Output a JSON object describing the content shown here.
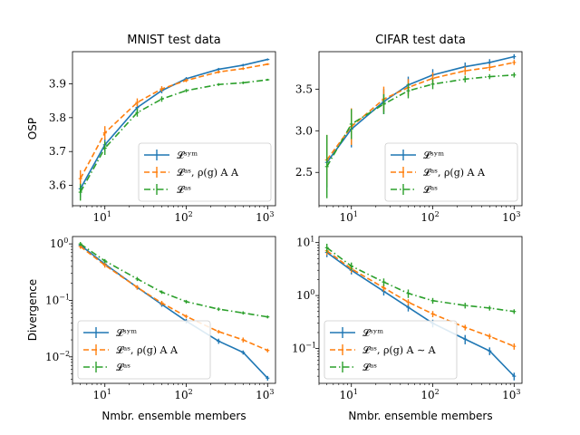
{
  "figure": {
    "colors": {
      "sym": "#1f77b4",
      "as_rho": "#ff7f0e",
      "as": "#2ca02c"
    },
    "legend_entries": {
      "sym": "𝓛ˢʸᵐ",
      "as_rho": "𝓛ᵃˢ, ρ(g) A  A",
      "as_rho_tilde": "𝓛ᵃˢ, ρ(g) A ∼ A",
      "as": "𝓛ᵃˢ"
    }
  },
  "chart_data": [
    {
      "id": "mnist-osp",
      "type": "line",
      "title": "MNIST test data",
      "xlabel": "",
      "ylabel": "OSP",
      "xscale": "log",
      "yscale": "linear",
      "xlim": [
        4,
        1250
      ],
      "ylim": [
        3.54,
        3.995
      ],
      "xticks": [
        10,
        100,
        1000
      ],
      "xtick_labels": [
        "10",
        "10",
        "10"
      ],
      "xtick_exps": [
        "1",
        "2",
        "3"
      ],
      "yticks": [
        3.6,
        3.7,
        3.8,
        3.9
      ],
      "ytick_labels": [
        "3.6",
        "3.7",
        "3.8",
        "3.9"
      ],
      "legend_position": "lower-right",
      "x": [
        5,
        10,
        25,
        50,
        100,
        250,
        500,
        1000
      ],
      "series": [
        {
          "key": "sym",
          "name": "𝓛ˢʸᵐ",
          "dash": "solid",
          "values": [
            3.59,
            3.72,
            3.83,
            3.88,
            3.915,
            3.943,
            3.955,
            3.972
          ],
          "errors": [
            0.025,
            0.02,
            0.012,
            0.008,
            0.005,
            0.004,
            0.004,
            0.003
          ]
        },
        {
          "key": "as_rho",
          "name": "𝓛ᵃˢ, ρ(g) A  A",
          "dash": "dashed",
          "values": [
            3.62,
            3.755,
            3.845,
            3.885,
            3.91,
            3.935,
            3.945,
            3.958
          ],
          "errors": [
            0.025,
            0.02,
            0.012,
            0.008,
            0.005,
            0.004,
            0.004,
            0.003
          ]
        },
        {
          "key": "as",
          "name": "𝓛ᵃˢ",
          "dash": "dashdot",
          "values": [
            3.58,
            3.71,
            3.815,
            3.855,
            3.88,
            3.898,
            3.903,
            3.912
          ],
          "errors": [
            0.025,
            0.02,
            0.012,
            0.008,
            0.005,
            0.004,
            0.004,
            0.003
          ]
        }
      ]
    },
    {
      "id": "cifar-osp",
      "type": "line",
      "title": "CIFAR test data",
      "xlabel": "",
      "ylabel": "",
      "xscale": "log",
      "yscale": "linear",
      "xlim": [
        4,
        1250
      ],
      "ylim": [
        2.1,
        3.95
      ],
      "xticks": [
        10,
        100,
        1000
      ],
      "xtick_labels": [
        "10",
        "10",
        "10"
      ],
      "xtick_exps": [
        "1",
        "2",
        "3"
      ],
      "yticks": [
        2.5,
        3.0,
        3.5
      ],
      "ytick_labels": [
        "2.5",
        "3.0",
        "3.5"
      ],
      "legend_position": "lower-right",
      "x": [
        5,
        10,
        25,
        50,
        100,
        250,
        500,
        1000
      ],
      "series": [
        {
          "key": "sym",
          "name": "𝓛ˢʸᵐ",
          "dash": "solid",
          "values": [
            2.62,
            3.02,
            3.35,
            3.55,
            3.67,
            3.77,
            3.82,
            3.89
          ],
          "errors": [
            0.3,
            0.22,
            0.15,
            0.1,
            0.07,
            0.05,
            0.04,
            0.03
          ]
        },
        {
          "key": "as_rho",
          "name": "𝓛ᵃˢ, ρ(g) A  A",
          "dash": "dashed",
          "values": [
            2.65,
            3.05,
            3.38,
            3.52,
            3.63,
            3.72,
            3.76,
            3.82
          ],
          "errors": [
            0.3,
            0.22,
            0.15,
            0.1,
            0.07,
            0.05,
            0.04,
            0.03
          ]
        },
        {
          "key": "as",
          "name": "𝓛ᵃˢ",
          "dash": "dashdot",
          "values": [
            2.57,
            3.08,
            3.32,
            3.48,
            3.56,
            3.62,
            3.65,
            3.67
          ],
          "errors": [
            0.38,
            0.18,
            0.12,
            0.09,
            0.06,
            0.04,
            0.03,
            0.03
          ]
        }
      ]
    },
    {
      "id": "mnist-div",
      "type": "line",
      "title": "",
      "xlabel": "Nmbr. ensemble members",
      "ylabel": "Divergence",
      "xscale": "log",
      "yscale": "log",
      "xlim": [
        4,
        1250
      ],
      "ylim": [
        0.0034,
        1.35
      ],
      "xticks": [
        10,
        100,
        1000
      ],
      "xtick_labels": [
        "10",
        "10",
        "10"
      ],
      "xtick_exps": [
        "1",
        "2",
        "3"
      ],
      "yticks": [
        0.01,
        0.1,
        1
      ],
      "ytick_labels": [
        "10",
        "10",
        "10"
      ],
      "ytick_exps": [
        "−2",
        "−1",
        "0"
      ],
      "legend_position": "lower-left",
      "x": [
        5,
        10,
        25,
        50,
        100,
        250,
        500,
        1000
      ],
      "series": [
        {
          "key": "sym",
          "name": "𝓛ˢʸᵐ",
          "dash": "solid",
          "values": [
            0.95,
            0.44,
            0.17,
            0.085,
            0.043,
            0.019,
            0.012,
            0.0042
          ],
          "errors": [
            0.08,
            0.04,
            0.015,
            0.008,
            0.004,
            0.002,
            0.001,
            0.0004
          ]
        },
        {
          "key": "as_rho",
          "name": "𝓛ᵃˢ, ρ(g) A  A",
          "dash": "dashed",
          "values": [
            0.9,
            0.42,
            0.17,
            0.09,
            0.052,
            0.028,
            0.02,
            0.013
          ],
          "errors": [
            0.08,
            0.04,
            0.015,
            0.008,
            0.004,
            0.002,
            0.002,
            0.001
          ]
        },
        {
          "key": "as",
          "name": "𝓛ᵃˢ",
          "dash": "dashdot",
          "values": [
            1.0,
            0.5,
            0.24,
            0.14,
            0.095,
            0.07,
            0.06,
            0.051
          ],
          "errors": [
            0.08,
            0.04,
            0.02,
            0.01,
            0.007,
            0.005,
            0.004,
            0.003
          ]
        }
      ]
    },
    {
      "id": "cifar-div",
      "type": "line",
      "title": "",
      "xlabel": "Nmbr. ensemble members",
      "ylabel": "",
      "xscale": "log",
      "yscale": "log",
      "xlim": [
        4,
        1250
      ],
      "ylim": [
        0.022,
        13
      ],
      "xticks": [
        10,
        100,
        1000
      ],
      "xtick_labels": [
        "10",
        "10",
        "10"
      ],
      "xtick_exps": [
        "1",
        "2",
        "3"
      ],
      "yticks": [
        0.1,
        1,
        10
      ],
      "ytick_labels": [
        "10",
        "10",
        "10"
      ],
      "ytick_exps": [
        "−1",
        "0",
        "1"
      ],
      "legend_position": "lower-left",
      "legend_alt_rho": true,
      "x": [
        5,
        10,
        25,
        50,
        100,
        250,
        500,
        1000
      ],
      "series": [
        {
          "key": "sym",
          "name": "𝓛ˢʸᵐ",
          "dash": "solid",
          "values": [
            6.5,
            3.0,
            1.2,
            0.6,
            0.3,
            0.15,
            0.09,
            0.03
          ],
          "errors": [
            1.2,
            0.5,
            0.2,
            0.1,
            0.05,
            0.03,
            0.015,
            0.005
          ]
        },
        {
          "key": "as_rho",
          "name": "𝓛ᵃˢ, ρ(g) A ∼ A",
          "dash": "dashed",
          "values": [
            7.0,
            3.2,
            1.4,
            0.75,
            0.45,
            0.25,
            0.17,
            0.11
          ],
          "errors": [
            1.2,
            0.5,
            0.2,
            0.1,
            0.06,
            0.03,
            0.02,
            0.015
          ]
        },
        {
          "key": "as",
          "name": "𝓛ᵃˢ",
          "dash": "dashdot",
          "values": [
            8.0,
            3.6,
            1.8,
            1.1,
            0.8,
            0.65,
            0.58,
            0.5
          ],
          "errors": [
            1.5,
            0.6,
            0.3,
            0.2,
            0.1,
            0.08,
            0.06,
            0.05
          ]
        }
      ]
    }
  ]
}
